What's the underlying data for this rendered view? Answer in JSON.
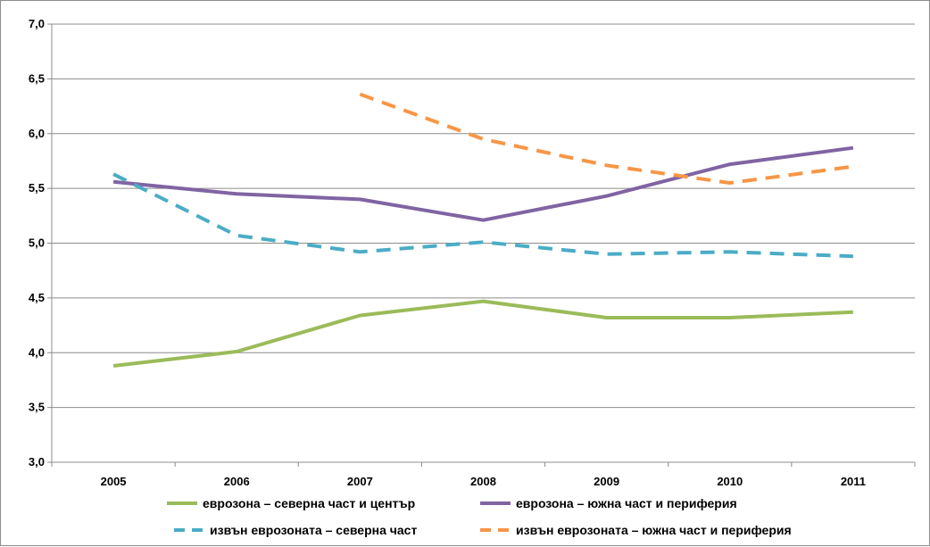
{
  "chart_data": {
    "type": "line",
    "categories": [
      "2005",
      "2006",
      "2007",
      "2008",
      "2009",
      "2010",
      "2011"
    ],
    "ylim": [
      3.0,
      7.0
    ],
    "yticks": [
      "3,0",
      "3,5",
      "4,0",
      "4,5",
      "5,0",
      "5,5",
      "6,0",
      "6,5",
      "7,0"
    ],
    "grid": "horizontal",
    "legend_position": "bottom",
    "series": [
      {
        "name": "еврозона – северна част и център",
        "color": "#9bbb59",
        "dash": "solid",
        "values": [
          3.88,
          4.01,
          4.34,
          4.47,
          4.32,
          4.32,
          4.37
        ]
      },
      {
        "name": "еврозона – южна част и периферия",
        "color": "#8064a2",
        "dash": "solid",
        "values": [
          5.56,
          5.45,
          5.4,
          5.21,
          5.43,
          5.72,
          5.87
        ]
      },
      {
        "name": "извън еврозоната – северна част",
        "color": "#4bacc6",
        "dash": "dashed",
        "values": [
          5.63,
          5.07,
          4.92,
          5.01,
          4.9,
          4.92,
          4.88
        ]
      },
      {
        "name": "извън еврозоната – южна част и периферия",
        "color": "#f79646",
        "dash": "dashed",
        "values": [
          null,
          null,
          6.36,
          5.95,
          5.71,
          5.55,
          5.7
        ]
      }
    ]
  }
}
